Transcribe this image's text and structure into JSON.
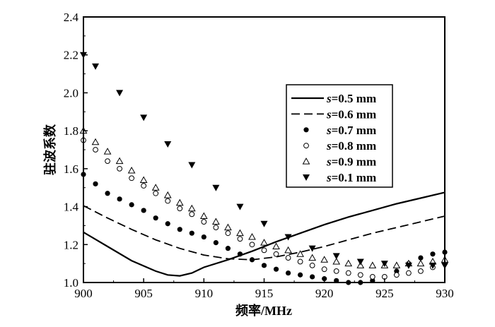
{
  "chart_data": {
    "type": "line",
    "xlabel": "频率/MHz",
    "ylabel": "驻波系数",
    "xlim": [
      900,
      930
    ],
    "ylim": [
      1.0,
      2.4
    ],
    "xticks": [
      "900",
      "905",
      "910",
      "915",
      "920",
      "925",
      "930"
    ],
    "yticks": [
      "1.0",
      "1.2",
      "1.4",
      "1.6",
      "1.8",
      "2.0",
      "2.2",
      "2.4"
    ],
    "grid": false,
    "legend_position": "right",
    "series": [
      {
        "name": "s=0.5 mm",
        "name_var": "s",
        "name_rest": "=0.5 mm",
        "style": "solid",
        "color": "#000000",
        "x": [
          900,
          902,
          904,
          906,
          907,
          908,
          909,
          910,
          912,
          914,
          916,
          918,
          920,
          922,
          924,
          926,
          928,
          930
        ],
        "y": [
          1.265,
          1.19,
          1.115,
          1.06,
          1.04,
          1.035,
          1.05,
          1.08,
          1.12,
          1.165,
          1.215,
          1.26,
          1.305,
          1.345,
          1.38,
          1.415,
          1.445,
          1.475
        ]
      },
      {
        "name": "s=0.6 mm",
        "name_var": "s",
        "name_rest": "=0.6 mm",
        "style": "dashed",
        "color": "#000000",
        "x": [
          900,
          902,
          904,
          906,
          908,
          910,
          912,
          914,
          916,
          918,
          920,
          922,
          924,
          926,
          928,
          930
        ],
        "y": [
          1.405,
          1.34,
          1.28,
          1.225,
          1.18,
          1.145,
          1.125,
          1.12,
          1.135,
          1.16,
          1.19,
          1.225,
          1.26,
          1.29,
          1.32,
          1.35
        ]
      },
      {
        "name": "s=0.7 mm",
        "name_var": "s",
        "name_rest": "=0.7 mm",
        "style": "filled-circle",
        "color": "#000000",
        "x": [
          900,
          901,
          902,
          903,
          904,
          905,
          906,
          907,
          908,
          909,
          910,
          911,
          912,
          913,
          914,
          915,
          916,
          917,
          918,
          919,
          920,
          921,
          922,
          923,
          924,
          925,
          926,
          927,
          928,
          929,
          930
        ],
        "y": [
          1.57,
          1.52,
          1.47,
          1.44,
          1.41,
          1.38,
          1.34,
          1.31,
          1.28,
          1.26,
          1.24,
          1.21,
          1.18,
          1.15,
          1.12,
          1.09,
          1.07,
          1.05,
          1.04,
          1.03,
          1.02,
          1.01,
          1.0,
          1.0,
          1.01,
          1.03,
          1.06,
          1.1,
          1.13,
          1.15,
          1.16
        ]
      },
      {
        "name": "s=0.8 mm",
        "name_var": "s",
        "name_rest": "=0.8 mm",
        "style": "open-circle",
        "color": "#000000",
        "x": [
          900,
          901,
          902,
          903,
          904,
          905,
          906,
          907,
          908,
          909,
          910,
          911,
          912,
          913,
          914,
          915,
          916,
          917,
          918,
          919,
          920,
          921,
          922,
          923,
          924,
          925,
          926,
          927,
          928,
          929,
          930
        ],
        "y": [
          1.75,
          1.7,
          1.64,
          1.6,
          1.55,
          1.51,
          1.47,
          1.43,
          1.39,
          1.36,
          1.32,
          1.29,
          1.26,
          1.23,
          1.2,
          1.17,
          1.15,
          1.13,
          1.11,
          1.09,
          1.07,
          1.06,
          1.05,
          1.04,
          1.03,
          1.03,
          1.04,
          1.05,
          1.06,
          1.08,
          1.1
        ]
      },
      {
        "name": "s=0.9 mm",
        "name_var": "s",
        "name_rest": "=0.9 mm",
        "style": "open-triangle",
        "color": "#000000",
        "x": [
          900,
          901,
          902,
          903,
          904,
          905,
          906,
          907,
          908,
          909,
          910,
          911,
          912,
          913,
          914,
          915,
          916,
          917,
          918,
          919,
          920,
          921,
          922,
          923,
          924,
          925,
          926,
          927,
          928,
          929,
          930
        ],
        "y": [
          1.8,
          1.74,
          1.69,
          1.64,
          1.59,
          1.54,
          1.5,
          1.46,
          1.42,
          1.39,
          1.35,
          1.32,
          1.29,
          1.26,
          1.24,
          1.21,
          1.19,
          1.17,
          1.15,
          1.13,
          1.12,
          1.11,
          1.1,
          1.09,
          1.09,
          1.09,
          1.09,
          1.1,
          1.1,
          1.11,
          1.12
        ]
      },
      {
        "name": "s=0.1 mm",
        "name_var": "s",
        "name_rest": "=0.1 mm",
        "style": "filled-down-triangle",
        "color": "#000000",
        "x": [
          900,
          901,
          903,
          905,
          907,
          909,
          911,
          913,
          915,
          917,
          919,
          921,
          923,
          925,
          927,
          929,
          930
        ],
        "y": [
          2.2,
          2.14,
          2.0,
          1.87,
          1.73,
          1.62,
          1.5,
          1.4,
          1.31,
          1.24,
          1.18,
          1.14,
          1.11,
          1.1,
          1.09,
          1.09,
          1.09
        ]
      }
    ]
  }
}
